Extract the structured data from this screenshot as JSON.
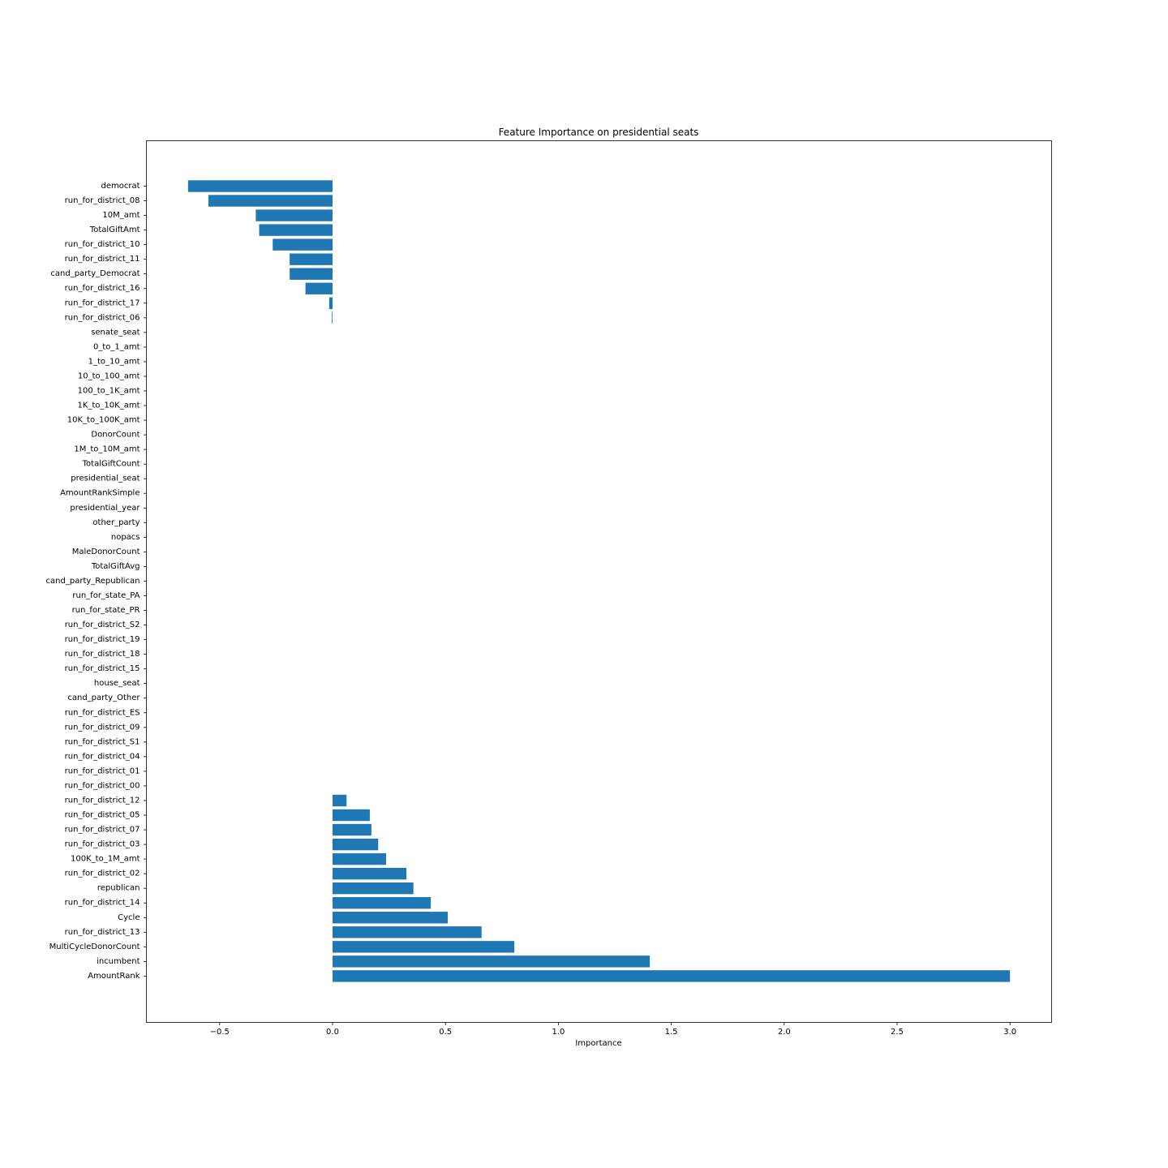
{
  "chart_data": {
    "type": "bar",
    "orientation": "horizontal",
    "title": "Feature Importance on presidential seats",
    "xlabel": "Importance",
    "ylabel": "",
    "xlim": [
      -0.825,
      3.18
    ],
    "xticks": [
      -0.5,
      0.0,
      0.5,
      1.0,
      1.5,
      2.0,
      2.5,
      3.0
    ],
    "xtick_labels": [
      "−0.5",
      "0.0",
      "0.5",
      "1.0",
      "1.5",
      "2.0",
      "2.5",
      "3.0"
    ],
    "grid": false,
    "legend": "none",
    "bar_color": "#1f77b4",
    "categories": [
      "democrat",
      "run_for_district_08",
      "10M_amt",
      "TotalGiftAmt",
      "run_for_district_10",
      "run_for_district_11",
      "cand_party_Democrat",
      "run_for_district_16",
      "run_for_district_17",
      "run_for_district_06",
      "senate_seat",
      "0_to_1_amt",
      "1_to_10_amt",
      "10_to_100_amt",
      "100_to_1K_amt",
      "1K_to_10K_amt",
      "10K_to_100K_amt",
      "DonorCount",
      "1M_to_10M_amt",
      "TotalGiftCount",
      "presidential_seat",
      "AmountRankSimple",
      "presidential_year",
      "other_party",
      "nopacs",
      "MaleDonorCount",
      "TotalGiftAvg",
      "cand_party_Republican",
      "run_for_state_PA",
      "run_for_state_PR",
      "run_for_district_S2",
      "run_for_district_19",
      "run_for_district_18",
      "run_for_district_15",
      "house_seat",
      "cand_party_Other",
      "run_for_district_ES",
      "run_for_district_09",
      "run_for_district_S1",
      "run_for_district_04",
      "run_for_district_01",
      "run_for_district_00",
      "run_for_district_12",
      "run_for_district_05",
      "run_for_district_07",
      "run_for_district_03",
      "100K_to_1M_amt",
      "run_for_district_02",
      "republican",
      "run_for_district_14",
      "Cycle",
      "run_for_district_13",
      "MultiCycleDonorCount",
      "incumbent",
      "AmountRank"
    ],
    "values": [
      -0.64,
      -0.55,
      -0.34,
      -0.325,
      -0.265,
      -0.19,
      -0.19,
      -0.12,
      -0.015,
      -0.003,
      0,
      0,
      0,
      0,
      0,
      0,
      0,
      0,
      0,
      0,
      0,
      0,
      0,
      0,
      0,
      0,
      0,
      0,
      0,
      0,
      0,
      0,
      0,
      0,
      0,
      0,
      0,
      0,
      0,
      0,
      0,
      0,
      0.062,
      0.165,
      0.172,
      0.202,
      0.237,
      0.327,
      0.358,
      0.435,
      0.51,
      0.66,
      0.805,
      1.405,
      3.0
    ]
  }
}
